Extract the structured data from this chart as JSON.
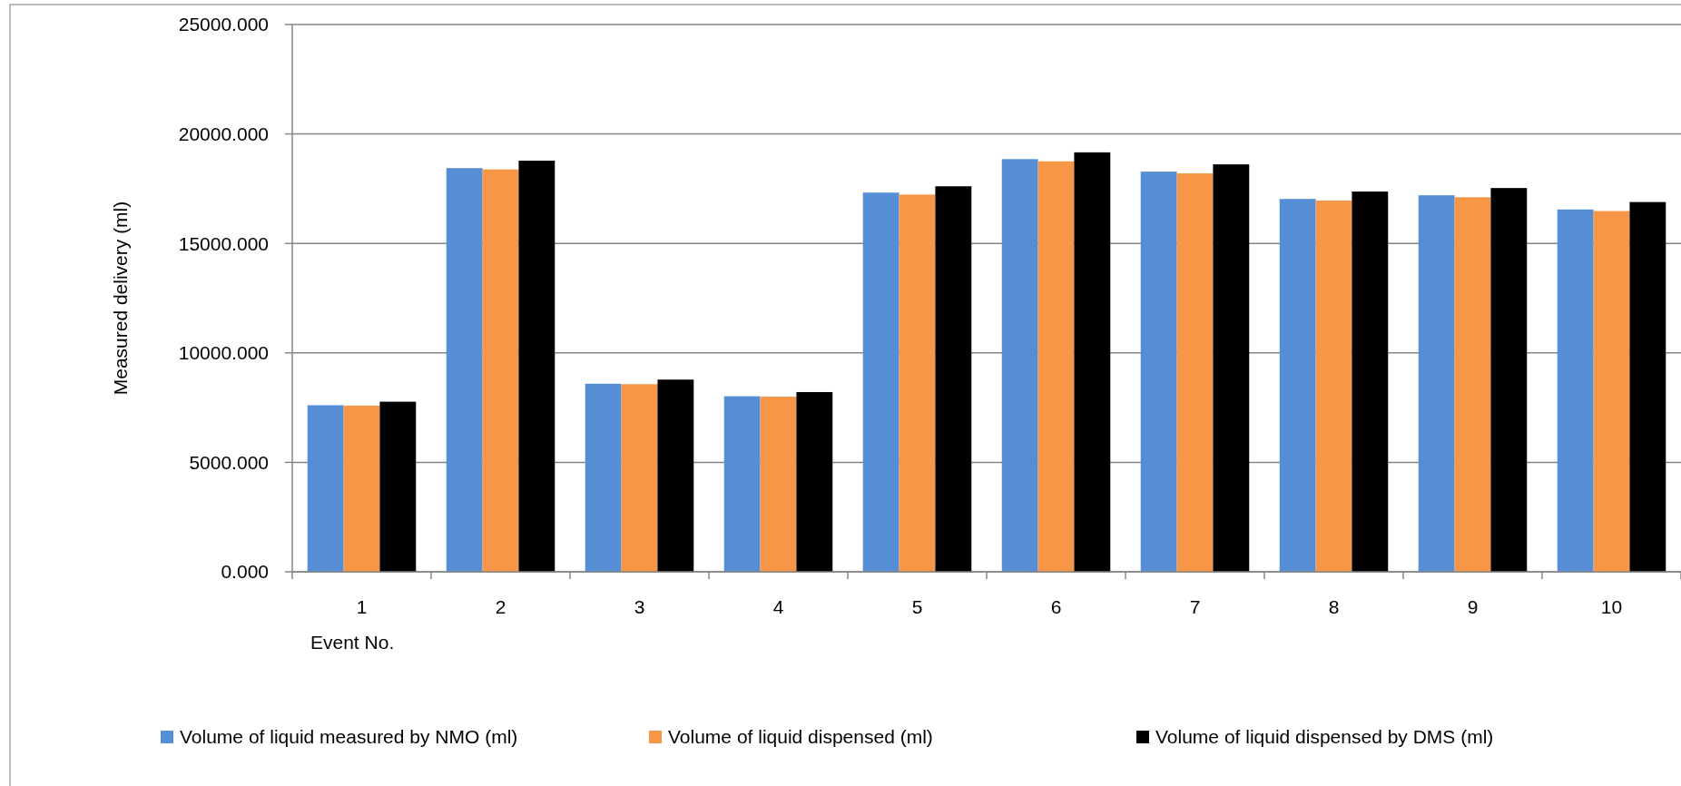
{
  "chart_data": {
    "type": "bar",
    "xlabel": "Event No.",
    "ylabel": "Measured delivery (ml)",
    "categories": [
      "1",
      "2",
      "3",
      "4",
      "5",
      "6",
      "7",
      "8",
      "9",
      "10"
    ],
    "series": [
      {
        "name": "Volume of liquid measured by NMO (ml)",
        "color": "#558ed5",
        "values": [
          7610,
          18440,
          8590,
          8020,
          17320,
          18850,
          18280,
          17030,
          17200,
          16550
        ]
      },
      {
        "name": "Volume of liquid dispensed (ml)",
        "color": "#f79646",
        "values": [
          7590,
          18380,
          8570,
          8000,
          17230,
          18750,
          18200,
          16960,
          17110,
          16480
        ]
      },
      {
        "name": "Volume of liquid dispensed by DMS (ml)",
        "color": "#000000",
        "values": [
          7770,
          18780,
          8780,
          8210,
          17610,
          19160,
          18610,
          17370,
          17530,
          16890
        ]
      }
    ],
    "ylim": [
      0,
      25000
    ],
    "yticks": [
      {
        "value": 0,
        "label": "0.000"
      },
      {
        "value": 5000,
        "label": "5000.000"
      },
      {
        "value": 10000,
        "label": "10000.000"
      },
      {
        "value": 15000,
        "label": "15000.000"
      },
      {
        "value": 20000,
        "label": "20000.000"
      },
      {
        "value": 25000,
        "label": "25000.000"
      }
    ],
    "grid": "y",
    "legend": "bottom"
  }
}
